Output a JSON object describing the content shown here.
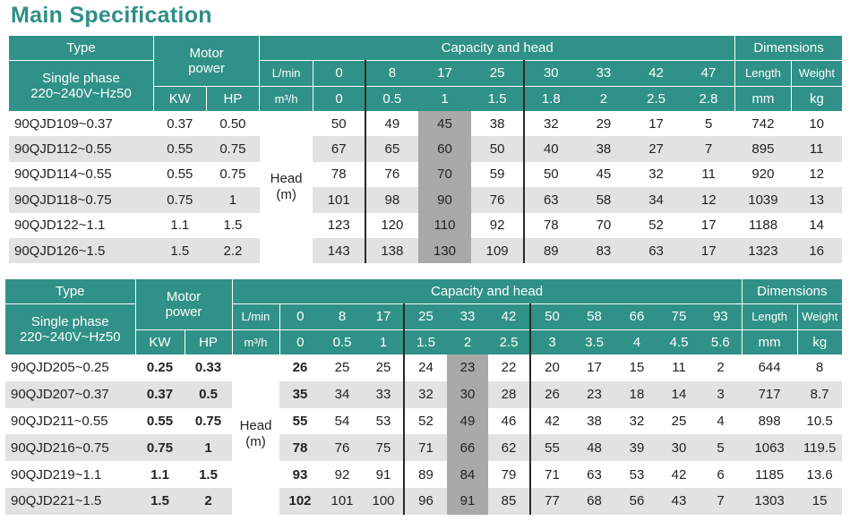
{
  "title": "Main Specification",
  "table1": {
    "type_label": "Type",
    "single_phase": "Single phase",
    "voltage": "220~240V~Hz50",
    "motor_power": "Motor power",
    "capacity_head": "Capacity and head",
    "dimensions": "Dimensions",
    "kw": "KW",
    "hp": "HP",
    "lmin": "L/min",
    "m3h": "m³/h",
    "length": "Length",
    "weight": "Weight",
    "mm": "mm",
    "kg": "kg",
    "head": "Head",
    "head_unit": "(m)",
    "flow_lmin": [
      "0",
      "8",
      "17",
      "25",
      "30",
      "33",
      "42",
      "47"
    ],
    "flow_m3h": [
      "0",
      "0.5",
      "1",
      "1.5",
      "1.8",
      "2",
      "2.5",
      "2.8"
    ],
    "rows": [
      {
        "model": "90QJD109~0.37",
        "kw": "0.37",
        "hp": "0.50",
        "heads": [
          "50",
          "49",
          "45",
          "38",
          "32",
          "29",
          "17",
          "5"
        ],
        "length": "742",
        "weight": "10"
      },
      {
        "model": "90QJD112~0.55",
        "kw": "0.55",
        "hp": "0.75",
        "heads": [
          "67",
          "65",
          "60",
          "50",
          "40",
          "38",
          "27",
          "7"
        ],
        "length": "895",
        "weight": "11"
      },
      {
        "model": "90QJD114~0.55",
        "kw": "0.55",
        "hp": "0.75",
        "heads": [
          "78",
          "76",
          "70",
          "59",
          "50",
          "45",
          "32",
          "11"
        ],
        "length": "920",
        "weight": "12"
      },
      {
        "model": "90QJD118~0.75",
        "kw": "0.75",
        "hp": "1",
        "heads": [
          "101",
          "98",
          "90",
          "76",
          "63",
          "58",
          "34",
          "12"
        ],
        "length": "1039",
        "weight": "13"
      },
      {
        "model": "90QJD122~1.1",
        "kw": "1.1",
        "hp": "1.5",
        "heads": [
          "123",
          "120",
          "110",
          "92",
          "78",
          "70",
          "52",
          "17"
        ],
        "length": "1188",
        "weight": "14"
      },
      {
        "model": "90QJD126~1.5",
        "kw": "1.5",
        "hp": "2.2",
        "heads": [
          "143",
          "138",
          "130",
          "109",
          "89",
          "83",
          "63",
          "17"
        ],
        "length": "1323",
        "weight": "16"
      }
    ]
  },
  "table2": {
    "type_label": "Type",
    "single_phase": "Single phase",
    "voltage": "220~240V~Hz50",
    "motor_power": "Motor power",
    "capacity_head": "Capacity and head",
    "dimensions": "Dimensions",
    "kw": "KW",
    "hp": "HP",
    "lmin": "L/min",
    "m3h": "m³/h",
    "length": "Length",
    "weight": "Weight",
    "mm": "mm",
    "kg": "kg",
    "head": "Head",
    "head_unit": "(m)",
    "flow_lmin": [
      "0",
      "8",
      "17",
      "25",
      "33",
      "42",
      "50",
      "58",
      "66",
      "75",
      "93"
    ],
    "flow_m3h": [
      "0",
      "0.5",
      "1",
      "1.5",
      "2",
      "2.5",
      "3",
      "3.5",
      "4",
      "4.5",
      "5.6"
    ],
    "rows": [
      {
        "model": "90QJD205~0.25",
        "kw": "0.25",
        "hp": "0.33",
        "heads": [
          "26",
          "25",
          "25",
          "24",
          "23",
          "22",
          "20",
          "17",
          "15",
          "11",
          "2"
        ],
        "length": "644",
        "weight": "8"
      },
      {
        "model": "90QJD207~0.37",
        "kw": "0.37",
        "hp": "0.5",
        "heads": [
          "35",
          "34",
          "33",
          "32",
          "30",
          "28",
          "26",
          "23",
          "18",
          "14",
          "3"
        ],
        "length": "717",
        "weight": "8.7"
      },
      {
        "model": "90QJD211~0.55",
        "kw": "0.55",
        "hp": "0.75",
        "heads": [
          "55",
          "54",
          "53",
          "52",
          "49",
          "46",
          "42",
          "38",
          "32",
          "25",
          "4"
        ],
        "length": "898",
        "weight": "10.5"
      },
      {
        "model": "90QJD216~0.75",
        "kw": "0.75",
        "hp": "1",
        "heads": [
          "78",
          "76",
          "75",
          "71",
          "66",
          "62",
          "55",
          "48",
          "39",
          "30",
          "5"
        ],
        "length": "1063",
        "weight": "119.5"
      },
      {
        "model": "90QJD219~1.1",
        "kw": "1.1",
        "hp": "1.5",
        "heads": [
          "93",
          "92",
          "91",
          "89",
          "84",
          "79",
          "71",
          "63",
          "53",
          "42",
          "6"
        ],
        "length": "1185",
        "weight": "13.6"
      },
      {
        "model": "90QJD221~1.5",
        "kw": "1.5",
        "hp": "2",
        "heads": [
          "102",
          "101",
          "100",
          "96",
          "91",
          "85",
          "77",
          "68",
          "56",
          "43",
          "7"
        ],
        "length": "1303",
        "weight": "15"
      }
    ]
  }
}
